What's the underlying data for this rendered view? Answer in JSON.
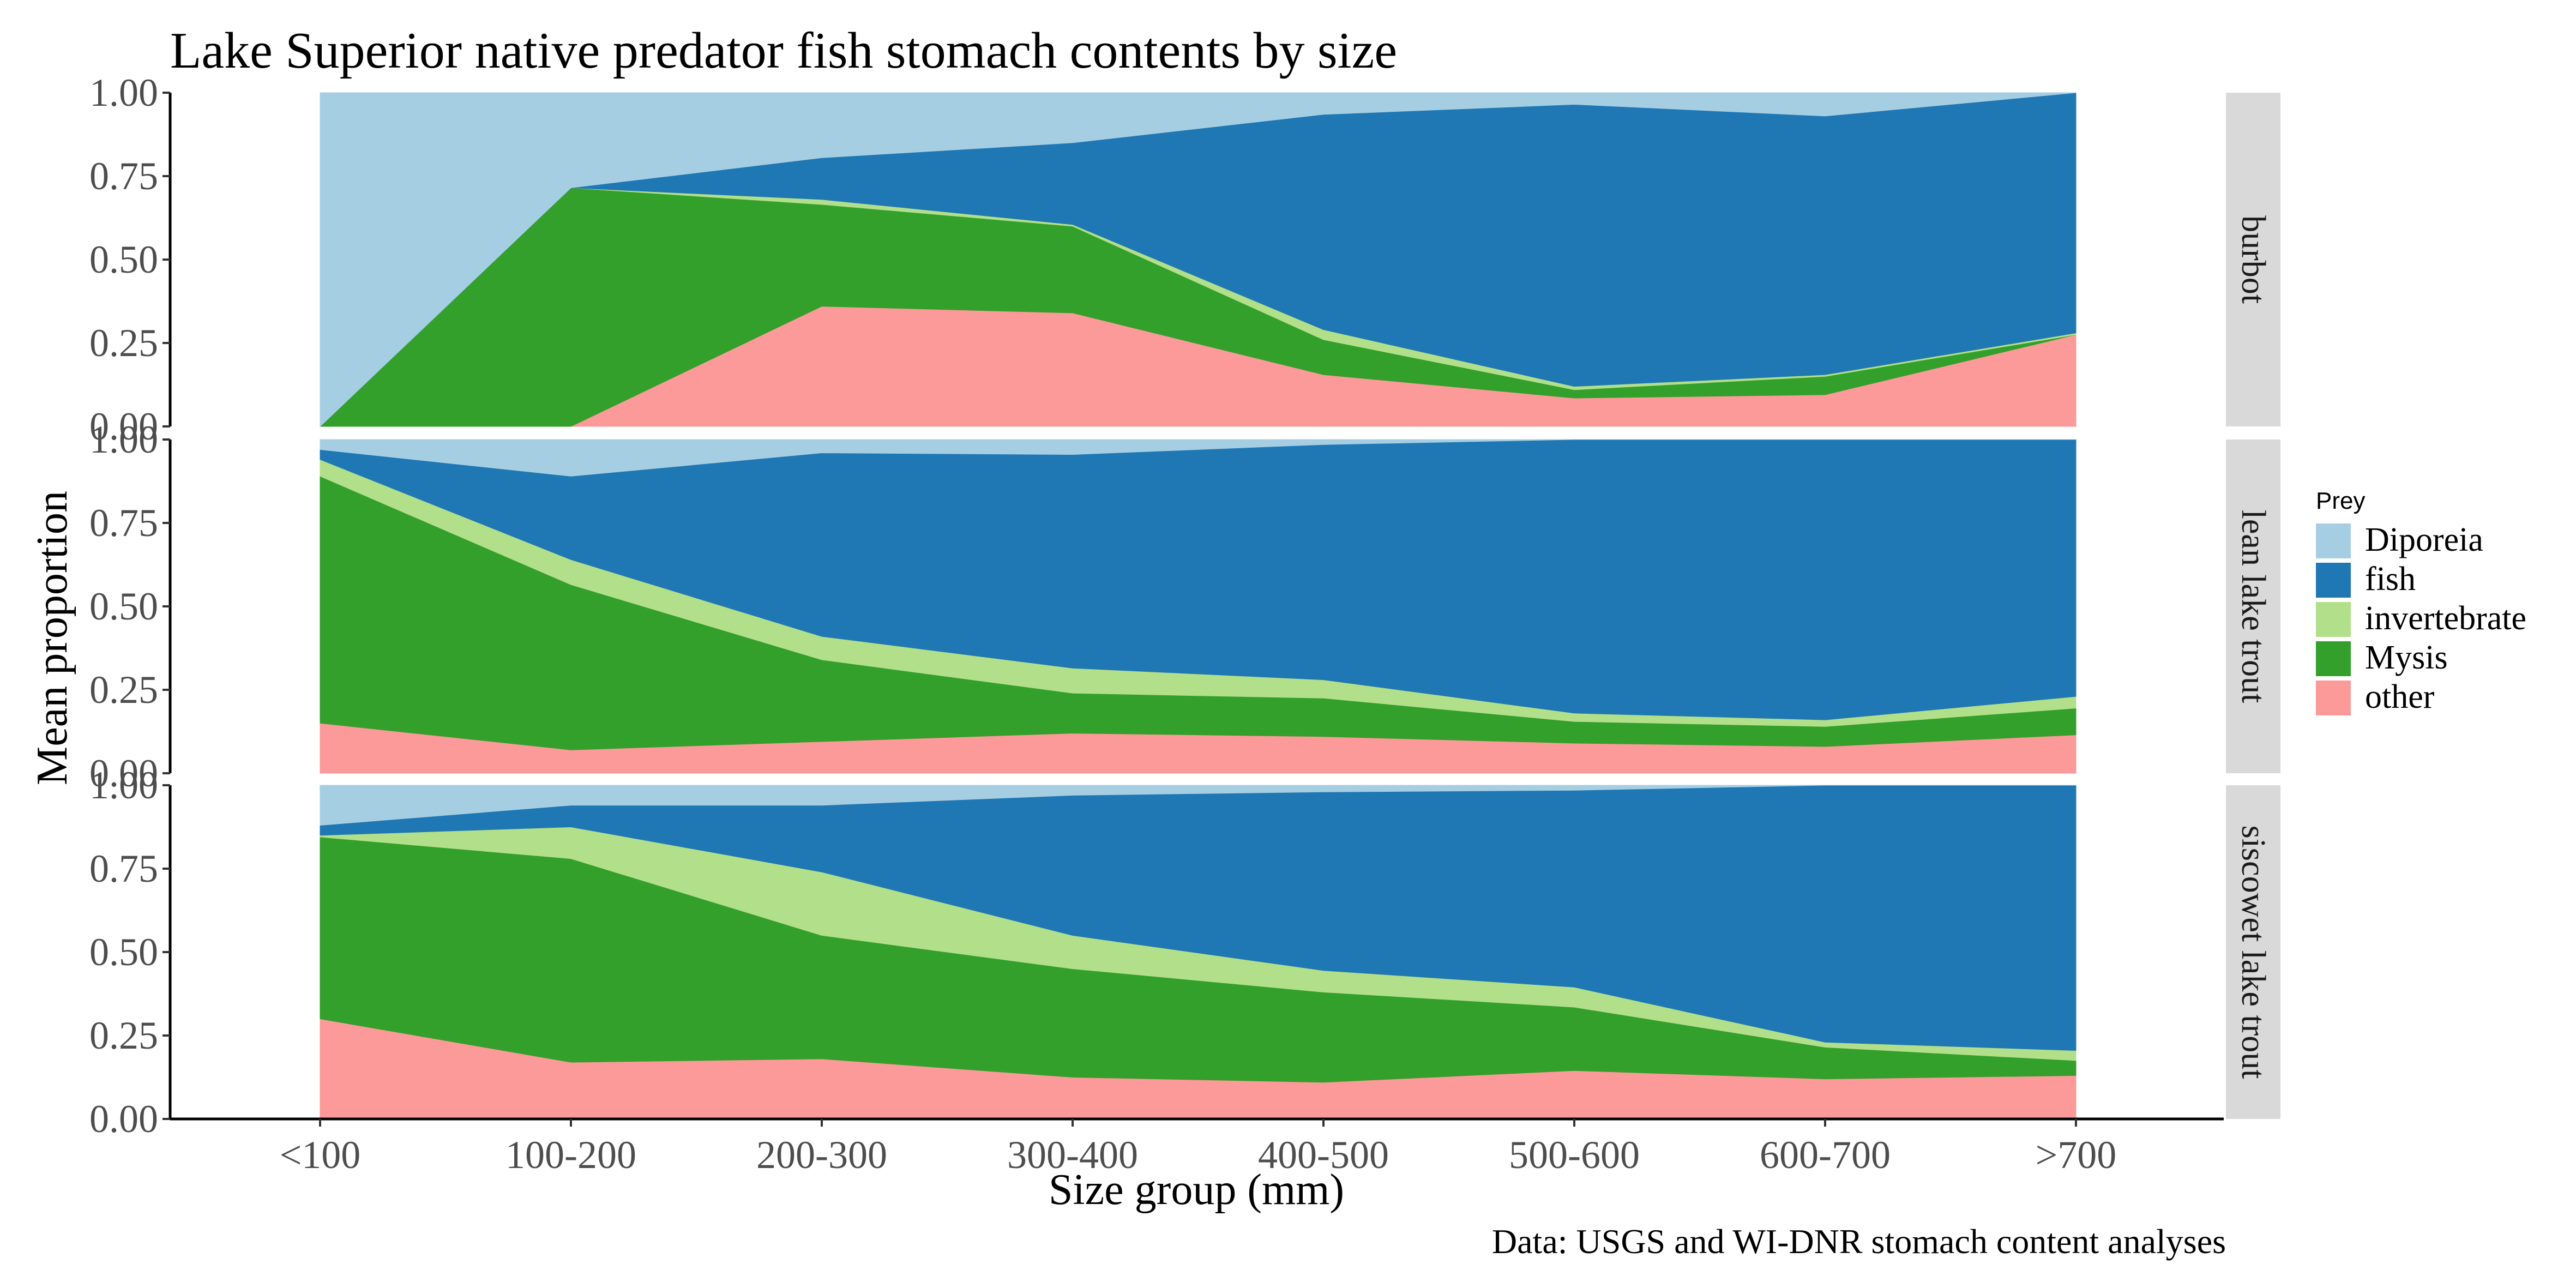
{
  "chart_data": {
    "type": "area",
    "stacked": true,
    "title": "Lake Superior native predator fish stomach contents by size",
    "xlabel": "Size group (mm)",
    "ylabel": "Mean proportion",
    "caption": "Data: USGS and WI-DNR stomach content analyses",
    "categories": [
      "<100",
      "100-200",
      "200-300",
      "300-400",
      "400-500",
      "500-600",
      "600-700",
      ">700"
    ],
    "ylim": [
      0,
      1
    ],
    "yticks": [
      "0.00",
      "0.25",
      "0.50",
      "0.75",
      "1.00"
    ],
    "legend": {
      "title": "Prey",
      "position": "right",
      "items": [
        "Diporeia",
        "fish",
        "invertebrate",
        "Mysis",
        "other"
      ]
    },
    "colors": {
      "Diporeia": "#a6cee3",
      "fish": "#1f78b4",
      "invertebrate": "#b2df8a",
      "Mysis": "#33a02c",
      "other": "#fb9a99"
    },
    "stack_order_bottom_to_top": [
      "other",
      "Mysis",
      "invertebrate",
      "fish",
      "Diporeia"
    ],
    "panels": [
      {
        "label": "burbot",
        "series": [
          {
            "name": "other",
            "values": [
              0,
              0,
              0.36,
              0.34,
              0.155,
              0.085,
              0.095,
              0.275
            ]
          },
          {
            "name": "Mysis",
            "values": [
              0,
              0.715,
              0.305,
              0.26,
              0.105,
              0.025,
              0.055,
              0
            ]
          },
          {
            "name": "invertebrate",
            "values": [
              0,
              0,
              0.015,
              0.005,
              0.03,
              0.01,
              0.005,
              0.005
            ]
          },
          {
            "name": "fish",
            "values": [
              0,
              0,
              0.125,
              0.245,
              0.645,
              0.845,
              0.775,
              0.72
            ]
          },
          {
            "name": "Diporeia",
            "values": [
              1,
              0.285,
              0.195,
              0.15,
              0.065,
              0.035,
              0.07,
              0
            ]
          }
        ]
      },
      {
        "label": "lean lake trout",
        "series": [
          {
            "name": "other",
            "values": [
              0.15,
              0.07,
              0.095,
              0.12,
              0.11,
              0.09,
              0.08,
              0.115
            ]
          },
          {
            "name": "Mysis",
            "values": [
              0.74,
              0.495,
              0.245,
              0.12,
              0.115,
              0.065,
              0.06,
              0.08
            ]
          },
          {
            "name": "invertebrate",
            "values": [
              0.05,
              0.075,
              0.07,
              0.075,
              0.055,
              0.025,
              0.02,
              0.035
            ]
          },
          {
            "name": "fish",
            "values": [
              0.03,
              0.25,
              0.55,
              0.64,
              0.705,
              0.82,
              0.84,
              0.77
            ]
          },
          {
            "name": "Diporeia",
            "values": [
              0.03,
              0.11,
              0.04,
              0.045,
              0.015,
              0,
              0,
              0
            ]
          }
        ]
      },
      {
        "label": "siscowet lake trout",
        "series": [
          {
            "name": "other",
            "values": [
              0.3,
              0.17,
              0.18,
              0.125,
              0.11,
              0.145,
              0.12,
              0.13
            ]
          },
          {
            "name": "Mysis",
            "values": [
              0.545,
              0.61,
              0.37,
              0.325,
              0.27,
              0.19,
              0.095,
              0.045
            ]
          },
          {
            "name": "invertebrate",
            "values": [
              0.005,
              0.095,
              0.19,
              0.1,
              0.065,
              0.06,
              0.015,
              0.03
            ]
          },
          {
            "name": "fish",
            "values": [
              0.03,
              0.065,
              0.2,
              0.42,
              0.535,
              0.59,
              0.77,
              0.795
            ]
          },
          {
            "name": "Diporeia",
            "values": [
              0.12,
              0.06,
              0.06,
              0.03,
              0.02,
              0.015,
              0,
              0
            ]
          }
        ]
      }
    ]
  }
}
